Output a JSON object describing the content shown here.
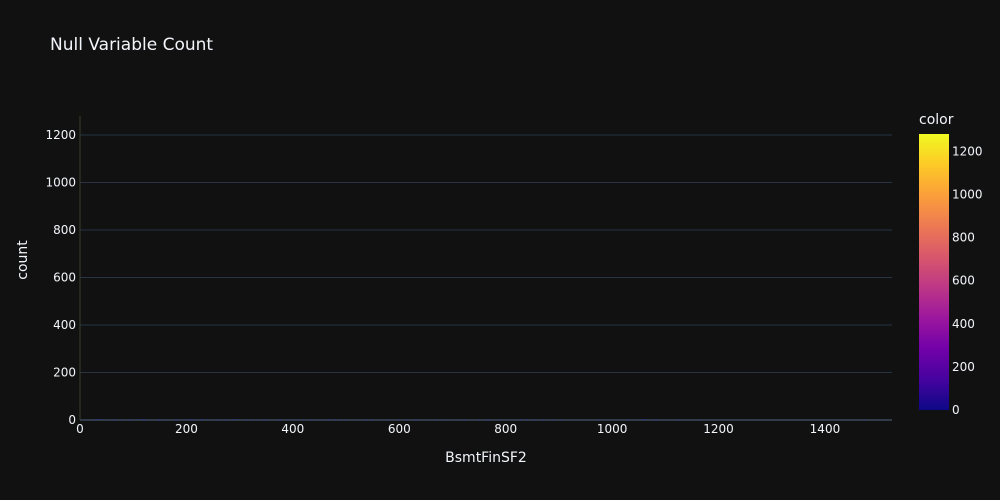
{
  "chart_data": {
    "type": "bar",
    "title": "Null Variable Count",
    "xlabel": "BsmtFinSF2",
    "ylabel": "count",
    "xlim": [
      0,
      1526
    ],
    "ylim": [
      0,
      1280
    ],
    "x_ticks": [
      0,
      200,
      400,
      600,
      800,
      1000,
      1200,
      1400
    ],
    "y_ticks": [
      0,
      200,
      400,
      600,
      800,
      1000,
      1200
    ],
    "grid": true,
    "colorbar": {
      "title": "color",
      "range": [
        0,
        1280
      ],
      "ticks": [
        0,
        200,
        400,
        600,
        800,
        1000,
        1200
      ],
      "colors": [
        "#0d0887",
        "#46039f",
        "#7201a8",
        "#9c179e",
        "#bd3786",
        "#d8576b",
        "#ed7953",
        "#fb9f3a",
        "#fdca26",
        "#f0f921"
      ]
    },
    "bars": [
      {
        "x": 28,
        "y": 1
      },
      {
        "x": 32,
        "y": 1
      },
      {
        "x": 35,
        "y": 1
      },
      {
        "x": 40,
        "y": 1
      },
      {
        "x": 41,
        "y": 1
      },
      {
        "x": 64,
        "y": 1
      },
      {
        "x": 68,
        "y": 1
      },
      {
        "x": 80,
        "y": 2
      },
      {
        "x": 93,
        "y": 1
      },
      {
        "x": 96,
        "y": 1
      },
      {
        "x": 108,
        "y": 1
      },
      {
        "x": 116,
        "y": 1
      },
      {
        "x": 117,
        "y": 1
      },
      {
        "x": 120,
        "y": 1
      },
      {
        "x": 123,
        "y": 1
      },
      {
        "x": 147,
        "y": 1
      },
      {
        "x": 149,
        "y": 1
      },
      {
        "x": 150,
        "y": 1
      },
      {
        "x": 162,
        "y": 1
      },
      {
        "x": 180,
        "y": 5
      },
      {
        "x": 182,
        "y": 1
      },
      {
        "x": 196,
        "y": 1
      },
      {
        "x": 206,
        "y": 1
      },
      {
        "x": 210,
        "y": 1
      },
      {
        "x": 215,
        "y": 1
      },
      {
        "x": 228,
        "y": 1
      },
      {
        "x": 230,
        "y": 1
      },
      {
        "x": 240,
        "y": 1
      },
      {
        "x": 258,
        "y": 1
      },
      {
        "x": 264,
        "y": 1
      },
      {
        "x": 273,
        "y": 1
      },
      {
        "x": 279,
        "y": 1
      },
      {
        "x": 287,
        "y": 1
      },
      {
        "x": 290,
        "y": 2
      },
      {
        "x": 294,
        "y": 3
      },
      {
        "x": 311,
        "y": 1
      },
      {
        "x": 324,
        "y": 1
      },
      {
        "x": 334,
        "y": 1
      },
      {
        "x": 345,
        "y": 1
      },
      {
        "x": 351,
        "y": 1
      },
      {
        "x": 374,
        "y": 1
      },
      {
        "x": 377,
        "y": 1
      },
      {
        "x": 391,
        "y": 1
      },
      {
        "x": 400,
        "y": 1
      },
      {
        "x": 410,
        "y": 1
      },
      {
        "x": 420,
        "y": 1
      },
      {
        "x": 435,
        "y": 1
      },
      {
        "x": 441,
        "y": 1
      },
      {
        "x": 456,
        "y": 1
      },
      {
        "x": 468,
        "y": 1
      },
      {
        "x": 479,
        "y": 1
      },
      {
        "x": 480,
        "y": 2
      },
      {
        "x": 488,
        "y": 1
      },
      {
        "x": 500,
        "y": 1
      },
      {
        "x": 532,
        "y": 1
      },
      {
        "x": 539,
        "y": 1
      },
      {
        "x": 547,
        "y": 1
      },
      {
        "x": 551,
        "y": 1
      },
      {
        "x": 580,
        "y": 1
      },
      {
        "x": 600,
        "y": 1
      },
      {
        "x": 612,
        "y": 1
      },
      {
        "x": 630,
        "y": 1
      },
      {
        "x": 635,
        "y": 1
      },
      {
        "x": 668,
        "y": 1
      },
      {
        "x": 682,
        "y": 1
      },
      {
        "x": 690,
        "y": 1
      },
      {
        "x": 712,
        "y": 1
      },
      {
        "x": 723,
        "y": 1
      },
      {
        "x": 750,
        "y": 1
      },
      {
        "x": 765,
        "y": 1
      },
      {
        "x": 768,
        "y": 1
      },
      {
        "x": 791,
        "y": 1
      },
      {
        "x": 827,
        "y": 1
      },
      {
        "x": 830,
        "y": 1
      },
      {
        "x": 841,
        "y": 1
      },
      {
        "x": 850,
        "y": 1
      },
      {
        "x": 856,
        "y": 1
      },
      {
        "x": 869,
        "y": 1
      },
      {
        "x": 872,
        "y": 1
      },
      {
        "x": 891,
        "y": 1
      },
      {
        "x": 906,
        "y": 1
      },
      {
        "x": 973,
        "y": 1
      },
      {
        "x": 1029,
        "y": 1
      },
      {
        "x": 1031,
        "y": 1
      },
      {
        "x": 1057,
        "y": 1
      },
      {
        "x": 1061,
        "y": 1
      },
      {
        "x": 1063,
        "y": 1
      },
      {
        "x": 1073,
        "y": 1
      },
      {
        "x": 1080,
        "y": 1
      },
      {
        "x": 1083,
        "y": 1
      },
      {
        "x": 1085,
        "y": 1
      },
      {
        "x": 1120,
        "y": 1
      },
      {
        "x": 1127,
        "y": 1
      },
      {
        "x": 1164,
        "y": 1
      },
      {
        "x": 1474,
        "y": 1
      }
    ]
  }
}
